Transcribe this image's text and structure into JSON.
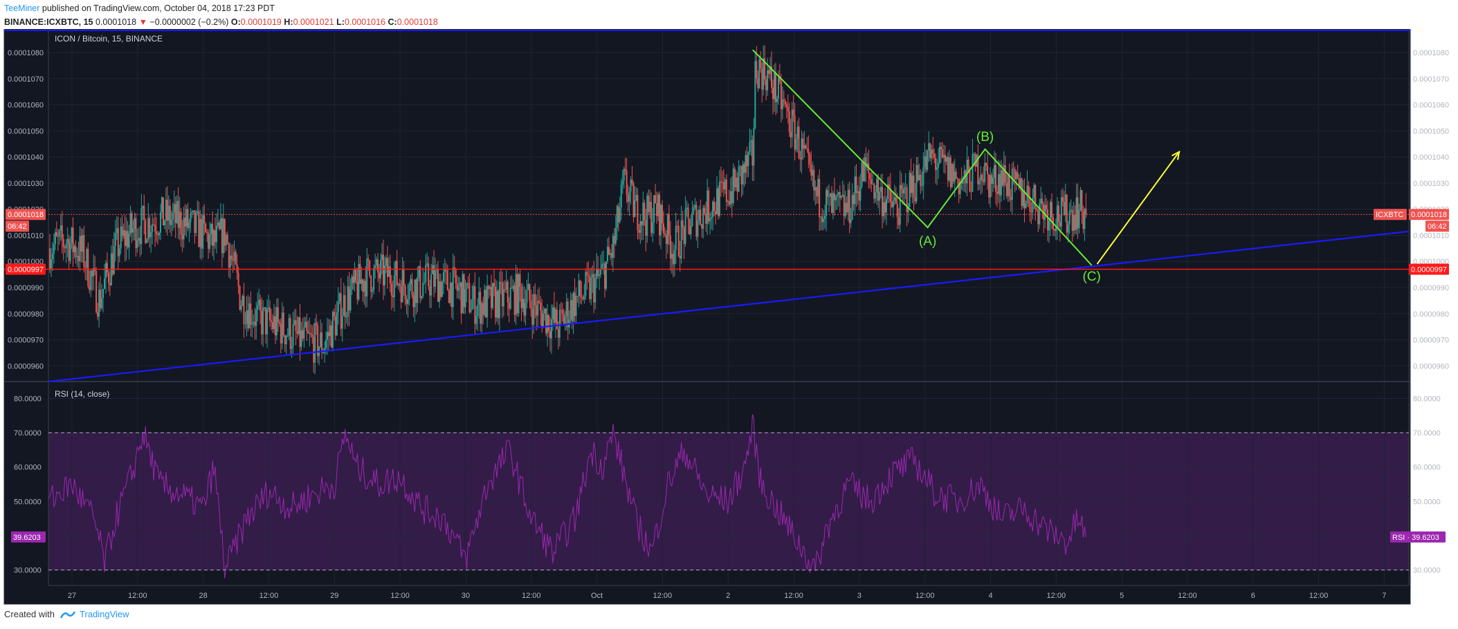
{
  "header": {
    "author": "TeeMiner",
    "published_text": "published on TradingView.com, October 04, 2018 17:23 PDT",
    "symbol": "BINANCE:ICXBTC, 15",
    "price": "0.0001018",
    "change": "−0.0000002 (−0.2%)",
    "o_label": "O:",
    "o_value": "0.0001019",
    "h_label": "H:",
    "h_value": "0.0001021",
    "l_label": "L:",
    "l_value": "0.0001016",
    "c_label": "C:",
    "c_value": "0.0001018"
  },
  "footer": {
    "created_with": "Created with",
    "brand": "TradingView"
  },
  "colors": {
    "background": "#131722",
    "candle_up": "#26a69a",
    "candle_down": "#ef5350",
    "rsi_line": "#9c27b0",
    "trendline": "#1a1aff",
    "support_line": "#ff1a1a",
    "wave": "#66ee33",
    "projection": "#ffff33"
  },
  "chart_data": [
    {
      "type": "candlestick",
      "title": "ICON / Bitcoin, 15, BINANCE",
      "y_ticks": [
        "0.0000960",
        "0.0000970",
        "0.0000980",
        "0.0000990",
        "0.0001000",
        "0.0001010",
        "0.0001020",
        "0.0001030",
        "0.0001040",
        "0.0001050",
        "0.0001060",
        "0.0001070",
        "0.0001080"
      ],
      "ylim": [
        9.54e-05,
        0.0001089
      ],
      "x_ticks": [
        "27",
        "12:00",
        "28",
        "12:00",
        "29",
        "12:00",
        "30",
        "12:00",
        "Oct",
        "12:00",
        "2",
        "12:00",
        "3",
        "12:00",
        "4",
        "12:00",
        "5",
        "12:00",
        "6",
        "12:00",
        "7"
      ],
      "x_tick_hours": [
        0,
        12,
        24,
        36,
        48,
        60,
        72,
        84,
        96,
        108,
        120,
        132,
        144,
        156,
        168,
        180,
        192,
        204,
        216,
        228,
        240
      ],
      "xlim_hours": [
        -4.3,
        244.5
      ],
      "data_end_hour": 185.5,
      "price_path_hours": [
        -4.3,
        -1,
        2,
        5,
        8,
        11,
        14,
        17,
        20,
        23,
        26,
        28,
        31,
        34,
        38,
        42,
        46,
        50,
        54,
        58,
        62,
        66,
        70,
        74,
        78,
        82,
        86,
        89,
        92,
        95,
        97,
        99,
        101,
        103,
        105,
        107,
        110,
        113,
        116,
        119,
        121,
        123,
        124.5,
        125,
        127,
        130,
        133,
        136,
        139,
        142,
        145,
        148,
        151,
        154,
        157,
        160,
        163,
        166,
        168,
        170,
        172,
        175,
        178,
        181,
        184,
        185.5
      ],
      "price_path": [
        0.0001005,
        0.0001008,
        0.0001003,
        9.85e-05,
        0.0001005,
        0.0001012,
        0.0001015,
        0.0001017,
        0.0001015,
        0.0001012,
        0.0001007,
        0.0001011,
        9.85e-05,
        9.78e-05,
        9.75e-05,
        9.7e-05,
        9.68e-05,
        9.85e-05,
        9.95e-05,
        9.95e-05,
        9.9e-05,
        9.93e-05,
        9.9e-05,
        9.83e-05,
        9.85e-05,
        9.88e-05,
        9.8e-05,
        9.75e-05,
        9.85e-05,
        9.9e-05,
        9.95e-05,
        0.0001005,
        0.000103,
        0.000102,
        0.0001017,
        0.000102,
        0.0001005,
        0.0001015,
        0.000102,
        0.0001025,
        0.0001028,
        0.0001035,
        0.000104,
        0.0001075,
        0.0001072,
        0.000106,
        0.0001045,
        0.0001025,
        0.000102,
        0.000102,
        0.0001035,
        0.0001025,
        0.000102,
        0.000103,
        0.000104,
        0.0001035,
        0.000103,
        0.0001037,
        0.000103,
        0.0001033,
        0.0001028,
        0.0001025,
        0.000102,
        0.0001017,
        0.000102,
        0.0001018
      ],
      "last_price": 0.0001018,
      "last_price_label": "0.0001018",
      "last_price_time": "06:42",
      "symbol_tag": "ICXBTC",
      "support_level": 9.97e-05,
      "support_label": "0.0000997",
      "trendline": {
        "from": [
          -4.3,
          9.54e-05
        ],
        "to": [
          244.5,
          0.00010115
        ]
      },
      "waves": {
        "points": [
          [
            124.5,
            0.0001081
          ],
          [
            156.5,
            0.0001013
          ],
          [
            167,
            0.0001043
          ],
          [
            186.5,
            9.985e-05
          ]
        ],
        "labels": [
          "(A)",
          "(B)",
          "(C)"
        ]
      },
      "projection": {
        "from": [
          187.5,
          9.99e-05
        ],
        "to": [
          202.5,
          0.0001042
        ]
      }
    },
    {
      "type": "line",
      "title": "RSI (14, close)",
      "series": [
        {
          "name": "RSI",
          "last": 39.6203
        }
      ],
      "last_label": "39.6203",
      "tag_label": "RSI",
      "y_ticks": [
        "30.0000",
        "40.0000",
        "50.0000",
        "60.0000",
        "70.0000",
        "80.0000"
      ],
      "ylim": [
        25.5,
        84.5
      ],
      "band": [
        30,
        70
      ],
      "rsi_path_hours": [
        -4.3,
        0,
        4,
        6,
        8,
        11,
        13,
        16,
        20,
        24,
        26,
        28,
        32,
        36,
        40,
        44,
        48,
        50,
        52,
        56,
        60,
        64,
        68,
        72,
        76,
        80,
        84,
        88,
        92,
        95,
        97,
        99,
        103,
        106,
        109,
        112,
        116,
        120,
        123,
        124.5,
        126,
        130,
        134,
        136,
        138,
        142,
        146,
        150,
        154,
        158,
        162,
        166,
        170,
        174,
        178,
        182,
        184,
        185.5
      ],
      "rsi_path": [
        50,
        55,
        45,
        32,
        45,
        58,
        70,
        55,
        52,
        48,
        60,
        30,
        45,
        53,
        48,
        52,
        55,
        70,
        60,
        55,
        57,
        48,
        45,
        33,
        55,
        65,
        45,
        35,
        45,
        65,
        60,
        70,
        45,
        35,
        55,
        65,
        52,
        50,
        60,
        72,
        55,
        45,
        35,
        30,
        42,
        55,
        50,
        58,
        62,
        52,
        50,
        55,
        45,
        48,
        42,
        38,
        45,
        39.6
      ]
    }
  ]
}
